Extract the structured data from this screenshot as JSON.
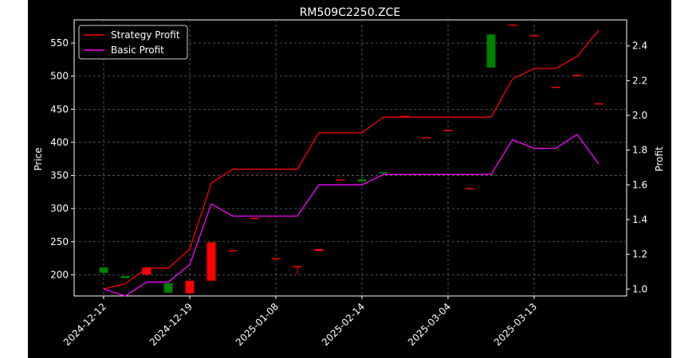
{
  "chart_data": {
    "type": "candlestick+line",
    "title": "RM509C2250.ZCE",
    "ylabel_left": "Price",
    "ylabel_right": "Profit",
    "x_tick_labels": [
      "2024-12-12",
      "2024-12-19",
      "2025-01-08",
      "2025-02-14",
      "2025-03-04",
      "2025-03-13"
    ],
    "x_tick_index": [
      0,
      4,
      8,
      12,
      16,
      20
    ],
    "ylim_left": [
      168,
      585
    ],
    "yticks_left": [
      200,
      250,
      300,
      350,
      400,
      450,
      500,
      550
    ],
    "ylim_right": [
      0.96,
      2.55
    ],
    "yticks_right": [
      1.0,
      1.2,
      1.4,
      1.6,
      1.8,
      2.0,
      2.2,
      2.4
    ],
    "grid": true,
    "legend_position": "upper-left",
    "candles": [
      {
        "open": 211,
        "close": 203,
        "high": 211,
        "low": 203,
        "color": "#008000"
      },
      {
        "open": 198,
        "close": 195,
        "high": 198,
        "low": 195,
        "color": "#008000"
      },
      {
        "open": 200,
        "close": 211,
        "high": 211,
        "low": 200,
        "color": "#ff0000"
      },
      {
        "open": 187,
        "close": 173,
        "high": 187,
        "low": 173,
        "color": "#008000"
      },
      {
        "open": 172,
        "close": 191,
        "high": 191,
        "low": 172,
        "color": "#ff0000"
      },
      {
        "open": 191,
        "close": 249,
        "high": 249,
        "low": 191,
        "color": "#ff0000"
      },
      {
        "open": 236,
        "close": 237,
        "high": 237,
        "low": 236,
        "color": "#ff0000"
      },
      {
        "open": 285,
        "close": 286,
        "high": 286,
        "low": 285,
        "color": "#ff0000"
      },
      {
        "open": 224,
        "close": 225,
        "high": 225,
        "low": 224,
        "color": "#ff0000"
      },
      {
        "open": 212,
        "close": 213,
        "high": 213,
        "low": 201,
        "color": "#ff0000"
      },
      {
        "open": 236,
        "close": 239,
        "high": 239,
        "low": 236,
        "color": "#ff0000"
      },
      {
        "open": 343,
        "close": 344,
        "high": 344,
        "low": 343,
        "color": "#ff0000"
      },
      {
        "open": 344,
        "close": 341,
        "high": 357,
        "low": 341,
        "color": "#008000"
      },
      {
        "open": 355,
        "close": 353,
        "high": 355,
        "low": 353,
        "color": "#008000"
      },
      {
        "open": 439,
        "close": 440,
        "high": 440,
        "low": 439,
        "color": "#ff0000"
      },
      {
        "open": 407,
        "close": 408,
        "high": 408,
        "low": 407,
        "color": "#ff0000"
      },
      {
        "open": 418,
        "close": 419,
        "high": 419,
        "low": 418,
        "color": "#ff0000"
      },
      {
        "open": 330,
        "close": 331,
        "high": 331,
        "low": 330,
        "color": "#ff0000"
      },
      {
        "open": 563,
        "close": 513,
        "high": 563,
        "low": 513,
        "color": "#008000"
      },
      {
        "open": 577,
        "close": 578,
        "high": 578,
        "low": 577,
        "color": "#ff0000"
      },
      {
        "open": 561,
        "close": 562,
        "high": 562,
        "low": 561,
        "color": "#ff0000"
      },
      {
        "open": 483,
        "close": 484,
        "high": 484,
        "low": 483,
        "color": "#ff0000"
      },
      {
        "open": 501,
        "close": 502,
        "high": 502,
        "low": 501,
        "color": "#ff0000"
      },
      {
        "open": 458,
        "close": 459,
        "high": 459,
        "low": 458,
        "color": "#ff0000"
      }
    ],
    "series": [
      {
        "name": "Strategy Profit",
        "color": "#ff0000",
        "values": [
          1.0,
          1.03,
          1.12,
          1.12,
          1.23,
          1.61,
          1.69,
          1.69,
          1.69,
          1.69,
          1.9,
          1.9,
          1.9,
          1.99,
          1.99,
          1.99,
          1.99,
          1.99,
          1.99,
          2.21,
          2.27,
          2.27,
          2.34,
          2.49
        ]
      },
      {
        "name": "Basic Profit",
        "color": "#ff00ff",
        "values": [
          1.0,
          0.96,
          1.04,
          1.04,
          1.14,
          1.49,
          1.42,
          1.42,
          1.42,
          1.42,
          1.6,
          1.6,
          1.6,
          1.66,
          1.66,
          1.66,
          1.66,
          1.66,
          1.66,
          1.86,
          1.81,
          1.81,
          1.89,
          1.72
        ]
      }
    ]
  }
}
